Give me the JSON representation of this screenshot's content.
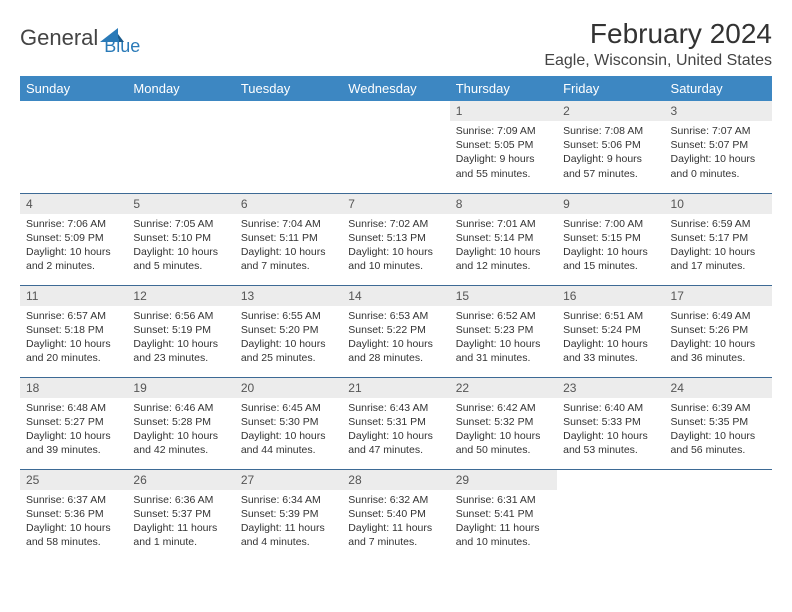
{
  "brand": {
    "name1": "General",
    "name2": "Blue"
  },
  "title": "February 2024",
  "location": "Eagle, Wisconsin, United States",
  "colors": {
    "header_bg": "#3d87c2",
    "header_text": "#ffffff",
    "daynum_bg": "#ececec",
    "row_border": "#3d6a95",
    "brand_blue": "#2a7ab8",
    "text": "#333333"
  },
  "typography": {
    "title_fontsize": 28,
    "location_fontsize": 16,
    "dayheader_fontsize": 13,
    "daynum_fontsize": 12,
    "body_fontsize": 10.5
  },
  "day_headers": [
    "Sunday",
    "Monday",
    "Tuesday",
    "Wednesday",
    "Thursday",
    "Friday",
    "Saturday"
  ],
  "weeks": [
    [
      {
        "empty": true
      },
      {
        "empty": true
      },
      {
        "empty": true
      },
      {
        "empty": true
      },
      {
        "num": "1",
        "sunrise": "Sunrise: 7:09 AM",
        "sunset": "Sunset: 5:05 PM",
        "day1": "Daylight: 9 hours",
        "day2": "and 55 minutes."
      },
      {
        "num": "2",
        "sunrise": "Sunrise: 7:08 AM",
        "sunset": "Sunset: 5:06 PM",
        "day1": "Daylight: 9 hours",
        "day2": "and 57 minutes."
      },
      {
        "num": "3",
        "sunrise": "Sunrise: 7:07 AM",
        "sunset": "Sunset: 5:07 PM",
        "day1": "Daylight: 10 hours",
        "day2": "and 0 minutes."
      }
    ],
    [
      {
        "num": "4",
        "sunrise": "Sunrise: 7:06 AM",
        "sunset": "Sunset: 5:09 PM",
        "day1": "Daylight: 10 hours",
        "day2": "and 2 minutes."
      },
      {
        "num": "5",
        "sunrise": "Sunrise: 7:05 AM",
        "sunset": "Sunset: 5:10 PM",
        "day1": "Daylight: 10 hours",
        "day2": "and 5 minutes."
      },
      {
        "num": "6",
        "sunrise": "Sunrise: 7:04 AM",
        "sunset": "Sunset: 5:11 PM",
        "day1": "Daylight: 10 hours",
        "day2": "and 7 minutes."
      },
      {
        "num": "7",
        "sunrise": "Sunrise: 7:02 AM",
        "sunset": "Sunset: 5:13 PM",
        "day1": "Daylight: 10 hours",
        "day2": "and 10 minutes."
      },
      {
        "num": "8",
        "sunrise": "Sunrise: 7:01 AM",
        "sunset": "Sunset: 5:14 PM",
        "day1": "Daylight: 10 hours",
        "day2": "and 12 minutes."
      },
      {
        "num": "9",
        "sunrise": "Sunrise: 7:00 AM",
        "sunset": "Sunset: 5:15 PM",
        "day1": "Daylight: 10 hours",
        "day2": "and 15 minutes."
      },
      {
        "num": "10",
        "sunrise": "Sunrise: 6:59 AM",
        "sunset": "Sunset: 5:17 PM",
        "day1": "Daylight: 10 hours",
        "day2": "and 17 minutes."
      }
    ],
    [
      {
        "num": "11",
        "sunrise": "Sunrise: 6:57 AM",
        "sunset": "Sunset: 5:18 PM",
        "day1": "Daylight: 10 hours",
        "day2": "and 20 minutes."
      },
      {
        "num": "12",
        "sunrise": "Sunrise: 6:56 AM",
        "sunset": "Sunset: 5:19 PM",
        "day1": "Daylight: 10 hours",
        "day2": "and 23 minutes."
      },
      {
        "num": "13",
        "sunrise": "Sunrise: 6:55 AM",
        "sunset": "Sunset: 5:20 PM",
        "day1": "Daylight: 10 hours",
        "day2": "and 25 minutes."
      },
      {
        "num": "14",
        "sunrise": "Sunrise: 6:53 AM",
        "sunset": "Sunset: 5:22 PM",
        "day1": "Daylight: 10 hours",
        "day2": "and 28 minutes."
      },
      {
        "num": "15",
        "sunrise": "Sunrise: 6:52 AM",
        "sunset": "Sunset: 5:23 PM",
        "day1": "Daylight: 10 hours",
        "day2": "and 31 minutes."
      },
      {
        "num": "16",
        "sunrise": "Sunrise: 6:51 AM",
        "sunset": "Sunset: 5:24 PM",
        "day1": "Daylight: 10 hours",
        "day2": "and 33 minutes."
      },
      {
        "num": "17",
        "sunrise": "Sunrise: 6:49 AM",
        "sunset": "Sunset: 5:26 PM",
        "day1": "Daylight: 10 hours",
        "day2": "and 36 minutes."
      }
    ],
    [
      {
        "num": "18",
        "sunrise": "Sunrise: 6:48 AM",
        "sunset": "Sunset: 5:27 PM",
        "day1": "Daylight: 10 hours",
        "day2": "and 39 minutes."
      },
      {
        "num": "19",
        "sunrise": "Sunrise: 6:46 AM",
        "sunset": "Sunset: 5:28 PM",
        "day1": "Daylight: 10 hours",
        "day2": "and 42 minutes."
      },
      {
        "num": "20",
        "sunrise": "Sunrise: 6:45 AM",
        "sunset": "Sunset: 5:30 PM",
        "day1": "Daylight: 10 hours",
        "day2": "and 44 minutes."
      },
      {
        "num": "21",
        "sunrise": "Sunrise: 6:43 AM",
        "sunset": "Sunset: 5:31 PM",
        "day1": "Daylight: 10 hours",
        "day2": "and 47 minutes."
      },
      {
        "num": "22",
        "sunrise": "Sunrise: 6:42 AM",
        "sunset": "Sunset: 5:32 PM",
        "day1": "Daylight: 10 hours",
        "day2": "and 50 minutes."
      },
      {
        "num": "23",
        "sunrise": "Sunrise: 6:40 AM",
        "sunset": "Sunset: 5:33 PM",
        "day1": "Daylight: 10 hours",
        "day2": "and 53 minutes."
      },
      {
        "num": "24",
        "sunrise": "Sunrise: 6:39 AM",
        "sunset": "Sunset: 5:35 PM",
        "day1": "Daylight: 10 hours",
        "day2": "and 56 minutes."
      }
    ],
    [
      {
        "num": "25",
        "sunrise": "Sunrise: 6:37 AM",
        "sunset": "Sunset: 5:36 PM",
        "day1": "Daylight: 10 hours",
        "day2": "and 58 minutes."
      },
      {
        "num": "26",
        "sunrise": "Sunrise: 6:36 AM",
        "sunset": "Sunset: 5:37 PM",
        "day1": "Daylight: 11 hours",
        "day2": "and 1 minute."
      },
      {
        "num": "27",
        "sunrise": "Sunrise: 6:34 AM",
        "sunset": "Sunset: 5:39 PM",
        "day1": "Daylight: 11 hours",
        "day2": "and 4 minutes."
      },
      {
        "num": "28",
        "sunrise": "Sunrise: 6:32 AM",
        "sunset": "Sunset: 5:40 PM",
        "day1": "Daylight: 11 hours",
        "day2": "and 7 minutes."
      },
      {
        "num": "29",
        "sunrise": "Sunrise: 6:31 AM",
        "sunset": "Sunset: 5:41 PM",
        "day1": "Daylight: 11 hours",
        "day2": "and 10 minutes."
      },
      {
        "empty": true
      },
      {
        "empty": true
      }
    ]
  ]
}
